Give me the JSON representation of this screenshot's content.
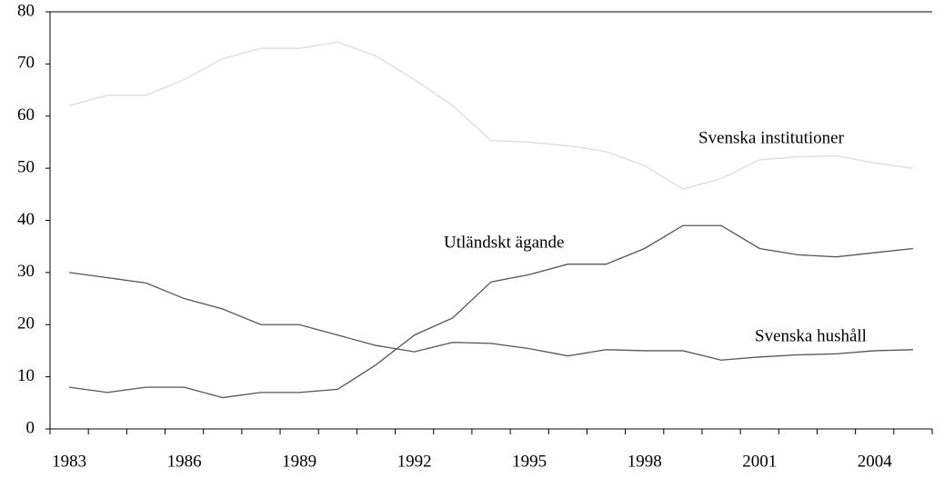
{
  "chart_data": {
    "type": "line",
    "categories": [
      "1983",
      null,
      null,
      "1986",
      null,
      null,
      "1989",
      null,
      null,
      "1992",
      null,
      null,
      "1995",
      null,
      null,
      "1998",
      null,
      null,
      "2001",
      null,
      null,
      "2004",
      null
    ],
    "series": [
      {
        "name": "Svenska institutioner",
        "color": "#dcdcdc",
        "values": [
          62,
          64,
          64,
          67,
          71,
          73,
          73,
          74.2,
          71.5,
          67,
          62,
          55.3,
          55,
          54.3,
          53.2,
          50.5,
          46,
          48,
          51.6,
          52.2,
          52.4,
          51,
          50
        ]
      },
      {
        "name": "Utländskt ägande",
        "color": "#555555",
        "values": [
          8,
          7,
          8,
          8,
          6,
          7,
          7,
          7.6,
          12.3,
          18,
          21.3,
          28.2,
          29.6,
          31.6,
          31.6,
          34.6,
          39,
          39,
          34.6,
          33.4,
          33,
          33.8,
          34.6
        ]
      },
      {
        "name": "Svenska hushåll",
        "color": "#555555",
        "values": [
          30,
          29,
          28,
          25,
          23,
          20,
          20,
          18,
          16,
          14.8,
          16.6,
          16.4,
          15.4,
          14,
          15.2,
          15,
          15,
          13.2,
          13.8,
          14.2,
          14.4,
          15,
          15.2
        ]
      }
    ],
    "ylim": [
      0,
      80
    ],
    "yticks": [
      0,
      10,
      20,
      30,
      40,
      50,
      60,
      70,
      80
    ],
    "grid": false
  }
}
